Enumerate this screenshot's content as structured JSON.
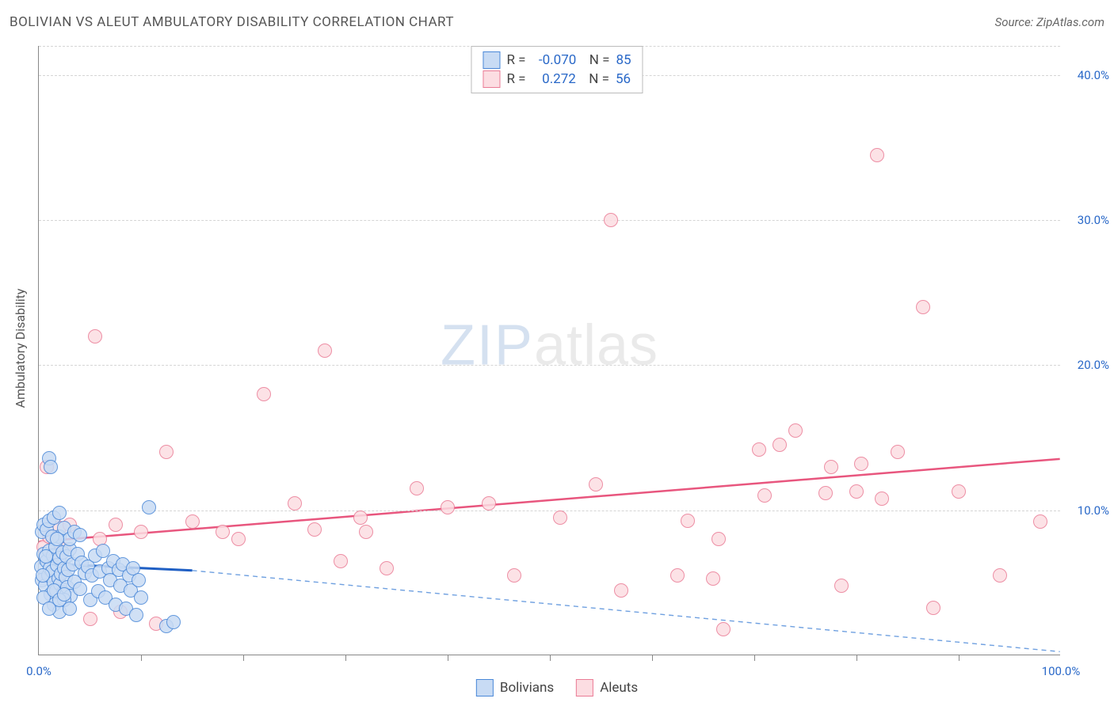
{
  "title": "BOLIVIAN VS ALEUT AMBULATORY DISABILITY CORRELATION CHART",
  "source": "Source: ZipAtlas.com",
  "ylabel": "Ambulatory Disability",
  "watermark": {
    "zip": "ZIP",
    "atlas": "atlas"
  },
  "chart": {
    "type": "scatter",
    "xlim": [
      0,
      100
    ],
    "ylim": [
      0,
      42
    ],
    "yticks": [
      {
        "v": 10,
        "label": "10.0%"
      },
      {
        "v": 20,
        "label": "20.0%"
      },
      {
        "v": 30,
        "label": "30.0%"
      },
      {
        "v": 40,
        "label": "40.0%"
      }
    ],
    "xticks_major": [
      0,
      100
    ],
    "xticks_minor": [
      10,
      20,
      30,
      40,
      50,
      60,
      70,
      80,
      90
    ],
    "xtick0_label": "0.0%",
    "xtick100_label": "100.0%",
    "background_color": "#ffffff",
    "grid_color": "#d5d5d5",
    "marker_radius": 9,
    "marker_stroke_width": 1.5
  },
  "series": {
    "bolivians": {
      "label": "Bolivians",
      "fill": "#c8dbf4",
      "stroke": "#4a88d8",
      "R": "-0.070",
      "N": "85",
      "trend": {
        "x1": 0,
        "y1": 6.3,
        "x2": 15,
        "y2": 5.8,
        "color": "#1f5fc4",
        "width": 3,
        "dash": ""
      },
      "trend_ext": {
        "x1": 15,
        "y1": 5.8,
        "x2": 100,
        "y2": 0.2,
        "color": "#6fa0e0",
        "width": 1.4,
        "dash": "6 5"
      },
      "points": [
        [
          0.2,
          6.1
        ],
        [
          0.3,
          5.2
        ],
        [
          0.5,
          7.0
        ],
        [
          0.6,
          4.8
        ],
        [
          0.8,
          6.5
        ],
        [
          0.9,
          5.5
        ],
        [
          1.0,
          7.2
        ],
        [
          1.1,
          6.0
        ],
        [
          1.2,
          4.2
        ],
        [
          1.3,
          5.8
        ],
        [
          1.4,
          6.9
        ],
        [
          1.5,
          5.0
        ],
        [
          1.6,
          7.5
        ],
        [
          1.7,
          4.5
        ],
        [
          1.8,
          6.2
        ],
        [
          1.9,
          5.3
        ],
        [
          2.0,
          6.7
        ],
        [
          2.1,
          4.9
        ],
        [
          2.2,
          5.6
        ],
        [
          2.3,
          7.1
        ],
        [
          2.4,
          4.3
        ],
        [
          2.5,
          6.0
        ],
        [
          2.6,
          5.4
        ],
        [
          2.7,
          6.8
        ],
        [
          2.8,
          4.7
        ],
        [
          2.9,
          5.9
        ],
        [
          3.0,
          7.3
        ],
        [
          3.1,
          4.1
        ],
        [
          1.0,
          13.6
        ],
        [
          1.2,
          13.0
        ],
        [
          3.3,
          6.3
        ],
        [
          3.5,
          5.1
        ],
        [
          3.8,
          7.0
        ],
        [
          4.0,
          4.6
        ],
        [
          4.2,
          6.4
        ],
        [
          4.5,
          5.7
        ],
        [
          4.8,
          6.1
        ],
        [
          5.0,
          3.8
        ],
        [
          5.2,
          5.5
        ],
        [
          5.5,
          6.9
        ],
        [
          5.8,
          4.4
        ],
        [
          6.0,
          5.8
        ],
        [
          6.3,
          7.2
        ],
        [
          6.5,
          4.0
        ],
        [
          6.8,
          6.0
        ],
        [
          7.0,
          5.2
        ],
        [
          7.3,
          6.5
        ],
        [
          7.5,
          3.5
        ],
        [
          7.8,
          5.9
        ],
        [
          8.0,
          4.8
        ],
        [
          8.2,
          6.3
        ],
        [
          8.5,
          3.2
        ],
        [
          8.8,
          5.5
        ],
        [
          9.0,
          4.5
        ],
        [
          9.2,
          6.0
        ],
        [
          9.5,
          2.8
        ],
        [
          9.8,
          5.2
        ],
        [
          10.0,
          4.0
        ],
        [
          10.8,
          10.2
        ],
        [
          2.0,
          8.2
        ],
        [
          2.5,
          8.8
        ],
        [
          3.0,
          8.0
        ],
        [
          3.5,
          8.5
        ],
        [
          4.0,
          8.3
        ],
        [
          1.5,
          3.5
        ],
        [
          2.0,
          3.0
        ],
        [
          2.5,
          3.8
        ],
        [
          3.0,
          3.2
        ],
        [
          12.5,
          2.0
        ],
        [
          13.2,
          2.3
        ],
        [
          0.3,
          8.5
        ],
        [
          0.5,
          9.0
        ],
        [
          0.8,
          8.7
        ],
        [
          1.0,
          9.3
        ],
        [
          1.3,
          8.2
        ],
        [
          1.5,
          9.5
        ],
        [
          1.8,
          8.0
        ],
        [
          2.0,
          9.8
        ],
        [
          0.5,
          4.0
        ],
        [
          1.0,
          3.2
        ],
        [
          1.5,
          4.5
        ],
        [
          2.0,
          3.8
        ],
        [
          2.5,
          4.2
        ],
        [
          0.4,
          5.5
        ],
        [
          0.7,
          6.8
        ]
      ]
    },
    "aleuts": {
      "label": "Aleuts",
      "fill": "#fcdde2",
      "stroke": "#ea7b95",
      "R": "0.272",
      "N": "56",
      "trend": {
        "x1": 0,
        "y1": 7.8,
        "x2": 100,
        "y2": 13.5,
        "color": "#e8567e",
        "width": 2.5,
        "dash": ""
      },
      "points": [
        [
          0.5,
          7.5
        ],
        [
          1.0,
          8.2
        ],
        [
          1.5,
          7.0
        ],
        [
          2.0,
          8.8
        ],
        [
          2.5,
          7.3
        ],
        [
          3.0,
          9.0
        ],
        [
          0.8,
          13.0
        ],
        [
          5.5,
          22.0
        ],
        [
          12.5,
          14.0
        ],
        [
          18.0,
          8.5
        ],
        [
          19.5,
          8.0
        ],
        [
          22.0,
          18.0
        ],
        [
          25.0,
          10.5
        ],
        [
          27.0,
          8.7
        ],
        [
          28.0,
          21.0
        ],
        [
          29.5,
          6.5
        ],
        [
          31.5,
          9.5
        ],
        [
          32.0,
          8.5
        ],
        [
          34.0,
          6.0
        ],
        [
          37.0,
          11.5
        ],
        [
          40.0,
          10.2
        ],
        [
          44.0,
          10.5
        ],
        [
          46.5,
          5.5
        ],
        [
          51.0,
          9.5
        ],
        [
          54.5,
          11.8
        ],
        [
          56.0,
          30.0
        ],
        [
          57.0,
          4.5
        ],
        [
          62.5,
          5.5
        ],
        [
          63.5,
          9.3
        ],
        [
          66.0,
          5.3
        ],
        [
          66.5,
          8.0
        ],
        [
          67.0,
          1.8
        ],
        [
          70.5,
          14.2
        ],
        [
          71.0,
          11.0
        ],
        [
          72.5,
          14.5
        ],
        [
          74.0,
          15.5
        ],
        [
          77.0,
          11.2
        ],
        [
          77.5,
          13.0
        ],
        [
          78.5,
          4.8
        ],
        [
          80.0,
          11.3
        ],
        [
          80.5,
          13.2
        ],
        [
          82.0,
          34.5
        ],
        [
          82.5,
          10.8
        ],
        [
          84.0,
          14.0
        ],
        [
          86.5,
          24.0
        ],
        [
          87.5,
          3.3
        ],
        [
          90.0,
          11.3
        ],
        [
          94.0,
          5.5
        ],
        [
          98.0,
          9.2
        ],
        [
          5.0,
          2.5
        ],
        [
          7.5,
          9.0
        ],
        [
          8.0,
          3.0
        ],
        [
          10.0,
          8.5
        ],
        [
          11.5,
          2.2
        ],
        [
          15.0,
          9.2
        ],
        [
          6.0,
          8.0
        ]
      ]
    }
  }
}
